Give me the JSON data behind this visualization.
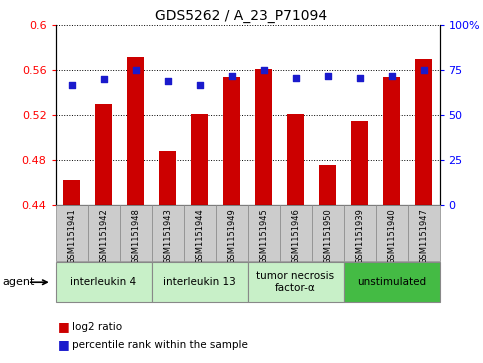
{
  "title": "GDS5262 / A_23_P71094",
  "samples": [
    "GSM1151941",
    "GSM1151942",
    "GSM1151948",
    "GSM1151943",
    "GSM1151944",
    "GSM1151949",
    "GSM1151945",
    "GSM1151946",
    "GSM1151950",
    "GSM1151939",
    "GSM1151940",
    "GSM1151947"
  ],
  "log2_ratio": [
    0.462,
    0.53,
    0.572,
    0.488,
    0.521,
    0.554,
    0.561,
    0.521,
    0.476,
    0.515,
    0.554,
    0.57
  ],
  "percentile": [
    67,
    70,
    75,
    69,
    67,
    72,
    75,
    71,
    72,
    71,
    72,
    75
  ],
  "bar_bottom": 0.44,
  "ylim_left": [
    0.44,
    0.6
  ],
  "ylim_right": [
    0.0,
    100.0
  ],
  "yticks_left": [
    0.44,
    0.48,
    0.52,
    0.56,
    0.6
  ],
  "yticks_right": [
    0,
    25,
    50,
    75,
    100
  ],
  "bar_color": "#cc0000",
  "dot_color": "#1a1acc",
  "agent_groups": [
    {
      "label": "interleukin 4",
      "span": 3,
      "color": "#c8f0c8"
    },
    {
      "label": "interleukin 13",
      "span": 3,
      "color": "#c8f0c8"
    },
    {
      "label": "tumor necrosis\nfactor-α",
      "span": 3,
      "color": "#c8f0c8"
    },
    {
      "label": "unstimulated",
      "span": 3,
      "color": "#44bb44"
    }
  ],
  "legend_bar_label": "log2 ratio",
  "legend_dot_label": "percentile rank within the sample",
  "agent_label": "agent",
  "title_fontsize": 10,
  "tick_fontsize": 8,
  "sample_fontsize": 6,
  "group_fontsize": 7.5,
  "legend_fontsize": 7.5,
  "bg_color": "#ffffff",
  "sample_box_color": "#cccccc",
  "plot_bg_color": "#ffffff"
}
